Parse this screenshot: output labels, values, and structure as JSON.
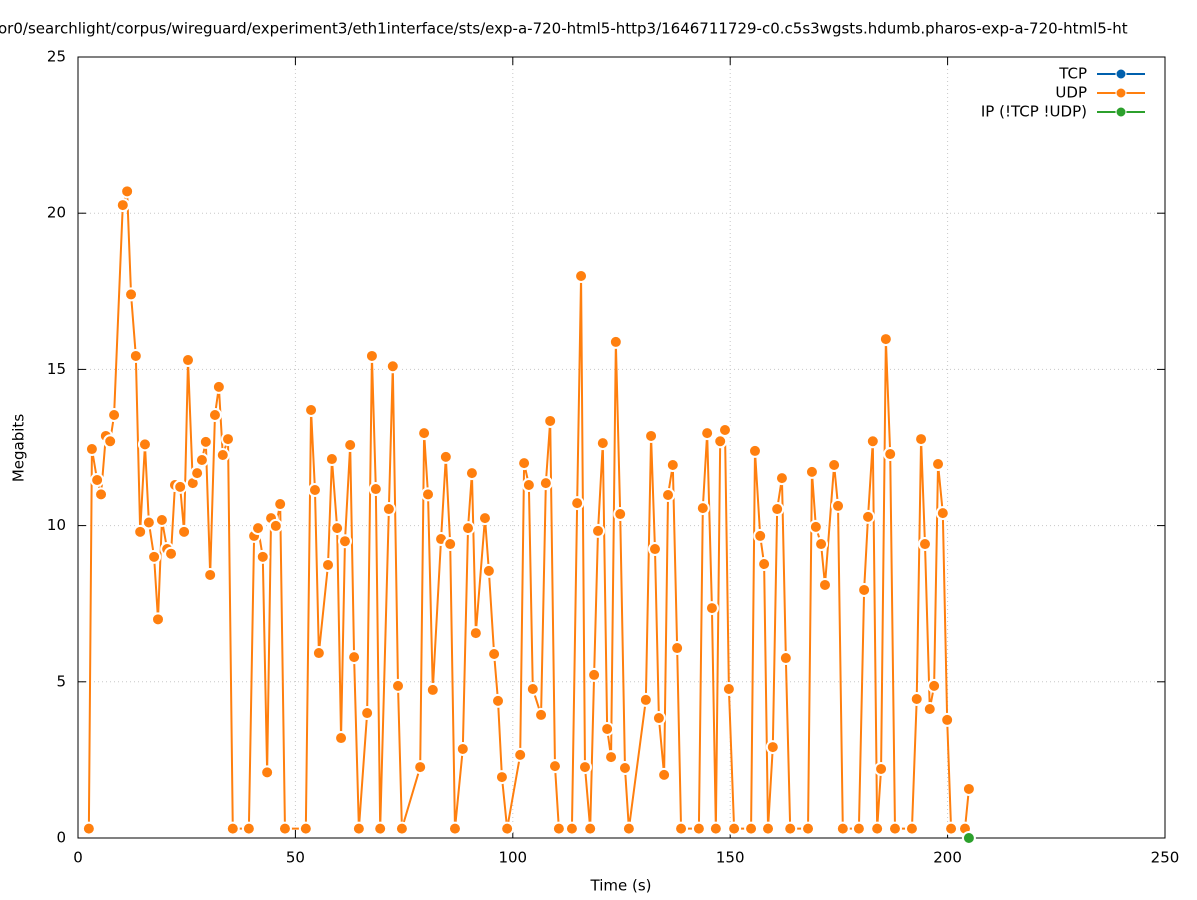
{
  "chart_data": {
    "type": "line",
    "title": "or0/searchlight/corpus/wireguard/experiment3/eth1interface/sts/exp-a-720-html5-http3/1646711729-c0.c5s3wgsts.hdumb.pharos-exp-a-720-html5-ht",
    "xlabel": "Time (s)",
    "ylabel": "Megabits",
    "xlim": [
      0,
      250
    ],
    "xticks": [
      0,
      50,
      100,
      150,
      200,
      250
    ],
    "ylim": [
      0,
      25
    ],
    "yticks": [
      0,
      5,
      10,
      15,
      20,
      25
    ],
    "grid": true,
    "legend": "top-right",
    "series": [
      {
        "name": "TCP",
        "color": "#0060ad",
        "x": [],
        "values": []
      },
      {
        "name": "UDP",
        "color": "#ff7f0e",
        "x": [
          2.5,
          3.2,
          4.4,
          5.3,
          6.4,
          7.4,
          8.3,
          10.3,
          11.3,
          12.2,
          13.3,
          14.3,
          15.4,
          16.3,
          17.5,
          18.4,
          19.3,
          20.5,
          21.4,
          22.3,
          23.5,
          24.4,
          25.3,
          26.4,
          27.4,
          28.5,
          29.4,
          30.4,
          31.5,
          32.4,
          33.3,
          34.5,
          35.6,
          39.3,
          40.5,
          41.4,
          42.5,
          43.5,
          44.4,
          45.5,
          46.5,
          47.6,
          52.4,
          53.6,
          54.5,
          55.4,
          57.5,
          58.4,
          59.6,
          60.5,
          61.4,
          62.6,
          63.5,
          64.6,
          66.5,
          67.6,
          68.5,
          69.5,
          71.5,
          72.4,
          73.6,
          74.5,
          78.7,
          79.6,
          80.5,
          81.6,
          83.5,
          84.6,
          85.6,
          86.7,
          88.5,
          89.7,
          90.6,
          91.5,
          93.6,
          94.5,
          95.7,
          96.6,
          97.5,
          98.7,
          101.7,
          102.6,
          103.7,
          104.6,
          106.5,
          107.6,
          108.6,
          109.7,
          110.6,
          113.6,
          114.8,
          115.7,
          116.6,
          117.8,
          118.7,
          119.6,
          120.7,
          121.7,
          122.6,
          123.7,
          124.7,
          125.8,
          126.7,
          130.6,
          131.8,
          132.7,
          133.6,
          134.8,
          135.7,
          136.8,
          137.8,
          138.7,
          142.8,
          143.7,
          144.7,
          145.8,
          146.7,
          147.7,
          148.8,
          149.7,
          150.9,
          154.8,
          155.7,
          156.9,
          157.8,
          158.7,
          159.8,
          160.8,
          161.9,
          162.8,
          163.8,
          167.9,
          168.8,
          169.7,
          170.9,
          171.8,
          173.9,
          174.8,
          175.9,
          179.6,
          180.8,
          181.7,
          182.8,
          183.8,
          184.7,
          185.8,
          186.8,
          187.9,
          191.8,
          192.9,
          193.9,
          194.8,
          195.9,
          196.9,
          197.8,
          198.9,
          199.9,
          200.8,
          204.0,
          204.9
        ],
        "values": [
          0.3,
          12.45,
          11.46,
          11.0,
          12.87,
          12.7,
          13.54,
          20.26,
          20.7,
          17.4,
          15.43,
          9.8,
          12.6,
          10.1,
          9.0,
          7.0,
          10.18,
          9.25,
          9.1,
          11.3,
          11.24,
          9.8,
          15.3,
          11.36,
          11.68,
          12.1,
          12.68,
          8.42,
          13.54,
          14.44,
          12.26,
          12.77,
          0.3,
          0.3,
          9.67,
          9.92,
          9.0,
          2.1,
          10.24,
          9.99,
          10.69,
          0.3,
          0.3,
          13.7,
          11.14,
          5.92,
          8.74,
          12.13,
          9.92,
          3.2,
          9.5,
          12.58,
          5.79,
          0.3,
          4.0,
          15.43,
          11.17,
          0.3,
          10.53,
          15.1,
          4.87,
          0.3,
          2.27,
          12.96,
          11.0,
          4.74,
          9.57,
          12.2,
          9.41,
          0.3,
          2.85,
          9.92,
          11.68,
          6.56,
          10.24,
          8.55,
          5.89,
          4.39,
          1.95,
          0.3,
          2.66,
          12.0,
          11.3,
          4.77,
          3.94,
          11.36,
          13.35,
          2.3,
          0.3,
          0.3,
          10.72,
          17.99,
          2.27,
          0.3,
          5.22,
          9.83,
          12.64,
          3.49,
          2.59,
          15.88,
          10.37,
          2.24,
          0.3,
          4.42,
          12.87,
          9.25,
          3.84,
          2.02,
          10.98,
          11.94,
          6.08,
          0.3,
          0.3,
          10.56,
          12.96,
          7.36,
          0.3,
          12.7,
          13.06,
          4.77,
          0.3,
          0.3,
          12.39,
          9.67,
          8.77,
          0.3,
          2.91,
          10.53,
          11.52,
          5.76,
          0.3,
          0.3,
          11.72,
          9.96,
          9.41,
          8.1,
          11.94,
          10.63,
          0.3,
          0.3,
          7.94,
          10.28,
          12.7,
          0.3,
          2.21,
          15.97,
          12.29,
          0.3,
          0.3,
          4.45,
          12.77,
          9.41,
          4.13,
          4.87,
          11.97,
          10.4,
          3.78,
          0.3,
          0.3,
          1.57
        ]
      },
      {
        "name": "IP (!TCP  !UDP)",
        "color": "#2ca02c",
        "x": [
          204.9
        ],
        "values": [
          0
        ]
      }
    ]
  }
}
